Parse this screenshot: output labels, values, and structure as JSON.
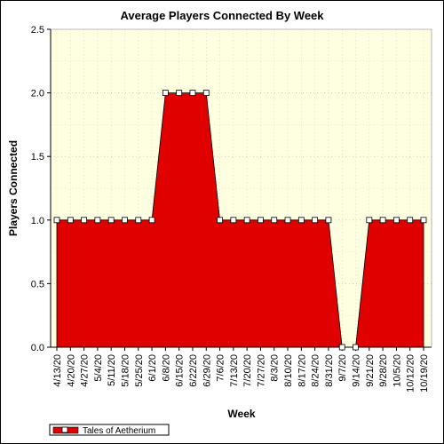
{
  "chart_data": {
    "type": "area",
    "title": "Average Players Connected By Week",
    "xlabel": "Week",
    "ylabel": "Players Connected",
    "ylim": [
      0,
      2.5
    ],
    "y_ticks": [
      "0.0",
      "0.5",
      "1.0",
      "1.5",
      "2.0",
      "2.5"
    ],
    "grid": true,
    "legend_position": "bottom-left",
    "categories": [
      "4/13/20",
      "4/20/20",
      "4/27/20",
      "5/4/20",
      "5/11/20",
      "5/18/20",
      "5/25/20",
      "6/1/20",
      "6/8/20",
      "6/15/20",
      "6/22/20",
      "6/29/20",
      "7/6/20",
      "7/13/20",
      "7/20/20",
      "7/27/20",
      "8/3/20",
      "8/10/20",
      "8/17/20",
      "8/24/20",
      "8/31/20",
      "9/7/20",
      "9/14/20",
      "9/21/20",
      "9/28/20",
      "10/5/20",
      "10/12/20",
      "10/19/20"
    ],
    "series": [
      {
        "name": "Tales of Aetherium",
        "color": "#e00000",
        "values": [
          1,
          1,
          1,
          1,
          1,
          1,
          1,
          1,
          2,
          2,
          2,
          2,
          1,
          1,
          1,
          1,
          1,
          1,
          1,
          1,
          1,
          0,
          0,
          1,
          1,
          1,
          1,
          1
        ]
      }
    ],
    "plot_background": "#fefee0"
  }
}
